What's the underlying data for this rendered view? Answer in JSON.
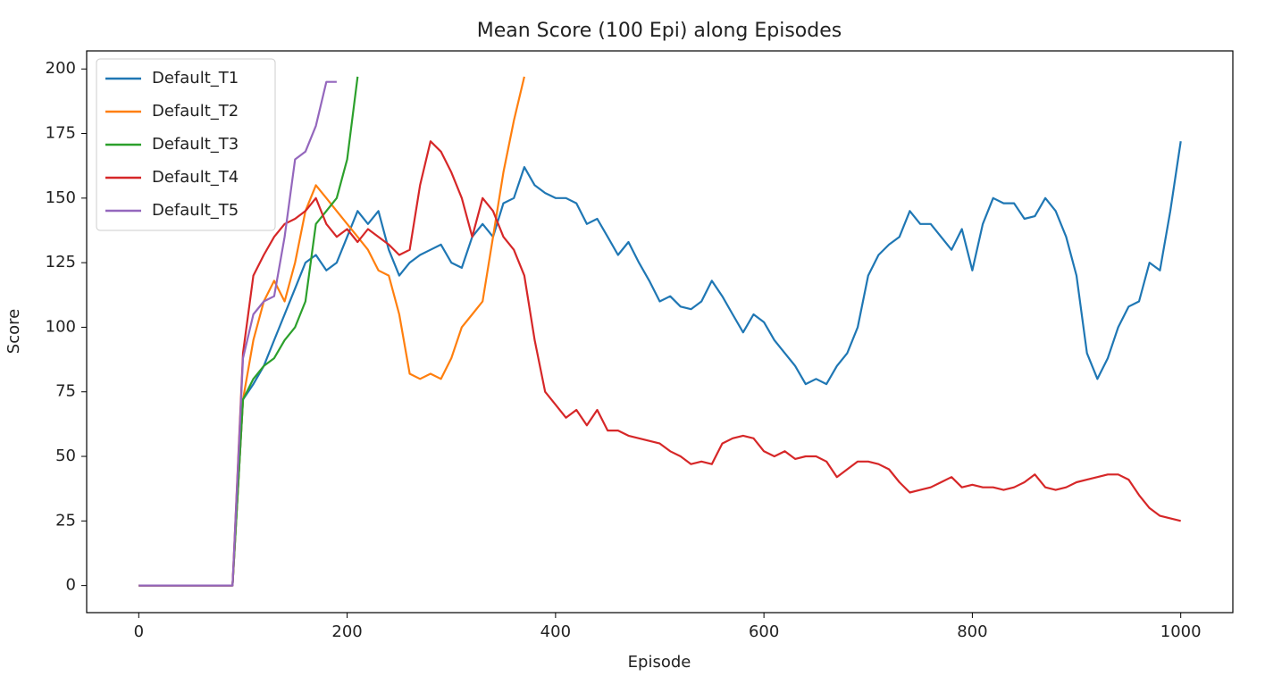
{
  "chart_data": {
    "type": "line",
    "title": "Mean Score (100 Epi) along Episodes",
    "x_label": "Episode",
    "y_label": "Score",
    "x": [
      0,
      10,
      20,
      30,
      40,
      50,
      60,
      70,
      80,
      90,
      100,
      110,
      120,
      130,
      140,
      150,
      160,
      170,
      180,
      190,
      200,
      210,
      220,
      230,
      240,
      250,
      260,
      270,
      280,
      290,
      300,
      310,
      320,
      330,
      340,
      350,
      360,
      370,
      380,
      390,
      400,
      410,
      420,
      430,
      440,
      450,
      460,
      470,
      480,
      490,
      500,
      510,
      520,
      530,
      540,
      550,
      560,
      570,
      580,
      590,
      600,
      610,
      620,
      630,
      640,
      650,
      660,
      670,
      680,
      690,
      700,
      710,
      720,
      730,
      740,
      750,
      760,
      770,
      780,
      790,
      800,
      810,
      820,
      830,
      840,
      850,
      860,
      870,
      880,
      890,
      900,
      910,
      920,
      930,
      940,
      950,
      960,
      970,
      980,
      990,
      1000
    ],
    "series": [
      {
        "name": "Default_T1",
        "color": "#1f77b4",
        "values": [
          0,
          0,
          0,
          0,
          0,
          0,
          0,
          0,
          0,
          0,
          72,
          78,
          85,
          95,
          105,
          115,
          125,
          128,
          122,
          125,
          135,
          145,
          140,
          145,
          130,
          120,
          125,
          128,
          130,
          132,
          125,
          123,
          135,
          140,
          135,
          148,
          150,
          162,
          155,
          152,
          150,
          150,
          148,
          140,
          142,
          135,
          128,
          133,
          125,
          118,
          110,
          112,
          108,
          107,
          110,
          118,
          112,
          105,
          98,
          105,
          102,
          95,
          90,
          85,
          78,
          80,
          78,
          85,
          90,
          100,
          120,
          128,
          132,
          135,
          145,
          140,
          140,
          135,
          130,
          138,
          122,
          140,
          150,
          148,
          148,
          142,
          143,
          150,
          145,
          135,
          120,
          90,
          80,
          88,
          100,
          108,
          110,
          125,
          122,
          145,
          172
        ]
      },
      {
        "name": "Default_T2",
        "color": "#ff7f0e",
        "values": [
          0,
          0,
          0,
          0,
          0,
          0,
          0,
          0,
          0,
          0,
          72,
          95,
          110,
          118,
          110,
          125,
          145,
          155,
          150,
          145,
          140,
          135,
          130,
          122,
          120,
          105,
          82,
          80,
          82,
          80,
          88,
          100,
          105,
          110,
          135,
          160,
          180,
          197,
          null,
          null,
          null,
          null,
          null,
          null,
          null,
          null,
          null,
          null,
          null,
          null,
          null,
          null,
          null,
          null,
          null,
          null,
          null,
          null,
          null,
          null,
          null,
          null,
          null,
          null,
          null,
          null,
          null,
          null,
          null,
          null,
          null,
          null,
          null,
          null,
          null,
          null,
          null,
          null,
          null,
          null,
          null,
          null,
          null,
          null,
          null,
          null,
          null,
          null,
          null,
          null,
          null,
          null,
          null,
          null,
          null,
          null,
          null,
          null,
          null,
          null,
          null
        ]
      },
      {
        "name": "Default_T3",
        "color": "#2ca02c",
        "values": [
          0,
          0,
          0,
          0,
          0,
          0,
          0,
          0,
          0,
          0,
          72,
          80,
          85,
          88,
          95,
          100,
          110,
          140,
          145,
          150,
          165,
          197,
          null,
          null,
          null,
          null,
          null,
          null,
          null,
          null,
          null,
          null,
          null,
          null,
          null,
          null,
          null,
          null,
          null,
          null,
          null,
          null,
          null,
          null,
          null,
          null,
          null,
          null,
          null,
          null,
          null,
          null,
          null,
          null,
          null,
          null,
          null,
          null,
          null,
          null,
          null,
          null,
          null,
          null,
          null,
          null,
          null,
          null,
          null,
          null,
          null,
          null,
          null,
          null,
          null,
          null,
          null,
          null,
          null,
          null,
          null,
          null,
          null,
          null,
          null,
          null,
          null,
          null,
          null,
          null,
          null,
          null,
          null,
          null,
          null,
          null,
          null,
          null,
          null,
          null,
          null
        ]
      },
      {
        "name": "Default_T4",
        "color": "#d62728",
        "values": [
          0,
          0,
          0,
          0,
          0,
          0,
          0,
          0,
          0,
          0,
          90,
          120,
          128,
          135,
          140,
          142,
          145,
          150,
          140,
          135,
          138,
          133,
          138,
          135,
          132,
          128,
          130,
          155,
          172,
          168,
          160,
          150,
          135,
          150,
          145,
          135,
          130,
          120,
          95,
          75,
          70,
          65,
          68,
          62,
          68,
          60,
          60,
          58,
          57,
          56,
          55,
          52,
          50,
          47,
          48,
          47,
          55,
          57,
          58,
          57,
          52,
          50,
          52,
          49,
          50,
          50,
          48,
          42,
          45,
          48,
          48,
          47,
          45,
          40,
          36,
          37,
          38,
          40,
          42,
          38,
          39,
          38,
          38,
          37,
          38,
          40,
          43,
          38,
          37,
          38,
          40,
          41,
          42,
          43,
          43,
          41,
          35,
          30,
          27,
          26,
          25
        ]
      },
      {
        "name": "Default_T5",
        "color": "#9467bd",
        "values": [
          0,
          0,
          0,
          0,
          0,
          0,
          0,
          0,
          0,
          0,
          88,
          105,
          110,
          112,
          135,
          165,
          168,
          178,
          195,
          195,
          null,
          null,
          null,
          null,
          null,
          null,
          null,
          null,
          null,
          null,
          null,
          null,
          null,
          null,
          null,
          null,
          null,
          null,
          null,
          null,
          null,
          null,
          null,
          null,
          null,
          null,
          null,
          null,
          null,
          null,
          null,
          null,
          null,
          null,
          null,
          null,
          null,
          null,
          null,
          null,
          null,
          null,
          null,
          null,
          null,
          null,
          null,
          null,
          null,
          null,
          null,
          null,
          null,
          null,
          null,
          null,
          null,
          null,
          null,
          null,
          null,
          null,
          null,
          null,
          null,
          null,
          null,
          null,
          null,
          null,
          null,
          null,
          null,
          null,
          null,
          null,
          null,
          null,
          null,
          null,
          null
        ]
      }
    ],
    "xlim": [
      -50,
      1050
    ],
    "ylim": [
      -10.5,
      207
    ],
    "xticks": [
      0,
      200,
      400,
      600,
      800,
      1000
    ],
    "yticks": [
      0,
      25,
      50,
      75,
      100,
      125,
      150,
      175,
      200
    ],
    "grid": false,
    "legend": "upper left"
  }
}
